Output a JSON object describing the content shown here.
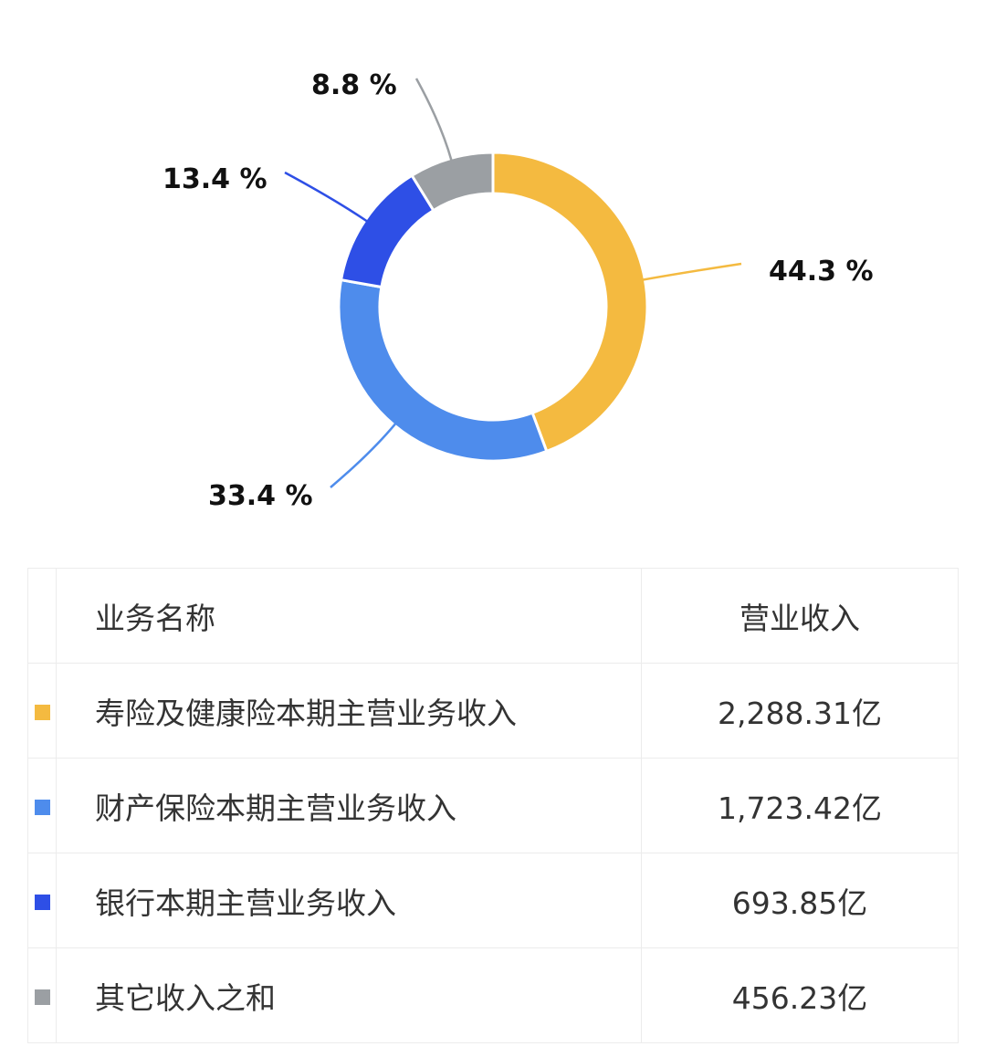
{
  "chart_data": {
    "type": "pie",
    "donut": true,
    "categories": [
      "寿险及健康险本期主营业务收入",
      "财产保险本期主营业务收入",
      "银行本期主营业务收入",
      "其它收入之和"
    ],
    "values": [
      44.3,
      33.4,
      13.4,
      8.8
    ],
    "labels": [
      "44.3 %",
      "33.4 %",
      "13.4 %",
      "8.8 %"
    ],
    "colors": [
      "#F4BA40",
      "#4E8CEC",
      "#2E4FE6",
      "#9B9FA3"
    ],
    "title": "",
    "legend": "none"
  },
  "table": {
    "headers": [
      "业务名称",
      "营业收入"
    ],
    "rows": [
      {
        "name": "寿险及健康险本期主营业务收入",
        "value": "2,288.31亿",
        "color": "#F4BA40"
      },
      {
        "name": "财产保险本期主营业务收入",
        "value": "1,723.42亿",
        "color": "#4E8CEC"
      },
      {
        "name": "银行本期主营业务收入",
        "value": "693.85亿",
        "color": "#2E4FE6"
      },
      {
        "name": "其它收入之和",
        "value": "456.23亿",
        "color": "#9B9FA3"
      }
    ]
  }
}
